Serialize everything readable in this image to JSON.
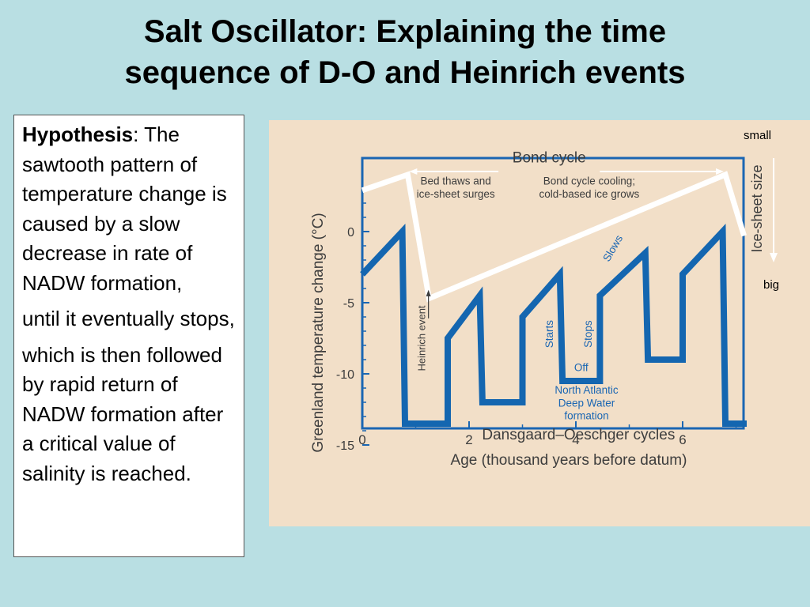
{
  "slide": {
    "title_line1": "Salt Oscillator: Explaining the time",
    "title_line2": "sequence of D-O and Heinrich events"
  },
  "hypothesis": {
    "heading": "Hypothesis",
    "sep": ": ",
    "p1": "The sawtooth pattern of temperature change is caused by a slow decrease in rate of NADW formation,",
    "p2": "until it eventually stops,",
    "p3": "which is then followed by rapid return of NADW formation after a critical value of salinity is reached."
  },
  "labels": {
    "small": "small",
    "big": "big"
  },
  "colors": {
    "panel": "#f2dfc8",
    "axis": "#1a66b3",
    "do_line": "#1466b0",
    "bond_line": "#ffffff",
    "text": "#3d3d3d"
  },
  "chart_data": {
    "type": "line",
    "xlabel": "Age (thousand years before datum)",
    "ylabel": "Greenland temperature change (°C)",
    "y2label": "Ice-sheet size",
    "xlim": [
      0,
      7.2
    ],
    "ylim": [
      -15,
      3.5
    ],
    "xticks": [
      0,
      2,
      4,
      6
    ],
    "yticks": [
      0,
      -5,
      -10,
      -15
    ],
    "series": [
      {
        "name": "Dansgaard–Oeschger cycles",
        "x": [
          0,
          0.75,
          0.8,
          1.6,
          1.6,
          2.2,
          2.25,
          3.0,
          3.0,
          3.7,
          3.75,
          4.45,
          4.45,
          5.3,
          5.35,
          6.0,
          6.0,
          6.75,
          6.8,
          7.2
        ],
        "y": [
          -3,
          0,
          -13.5,
          -13.5,
          -7.5,
          -4.5,
          -12,
          -12,
          -6,
          -3,
          -10.5,
          -10.5,
          -4.5,
          -1.5,
          -9,
          -9,
          -3,
          0,
          -13.5,
          -13.5
        ]
      },
      {
        "name": "Bond cycle",
        "x": [
          0,
          0.85,
          1.25,
          6.8,
          7.15
        ],
        "y": [
          2.9,
          4.0,
          -4.7,
          4.0,
          -0.3
        ]
      }
    ],
    "annotations": [
      {
        "text": "Bond cycle",
        "x": 3.5,
        "y": 4.85
      },
      {
        "text": "Bed thaws and",
        "x": 1.75,
        "y": 3.3
      },
      {
        "text": "ice-sheet surges",
        "x": 1.75,
        "y": 2.4
      },
      {
        "text": "Bond cycle cooling;",
        "x": 4.25,
        "y": 3.3
      },
      {
        "text": "cold-based ice grows",
        "x": 4.25,
        "y": 2.4
      },
      {
        "text": "Heinrich event",
        "x": 1.18,
        "y": -7.5,
        "rotate": -90
      },
      {
        "text": "Starts",
        "x": 3.57,
        "y": -7.2,
        "rotate": -90
      },
      {
        "text": "Stops",
        "x": 4.3,
        "y": -7.2,
        "rotate": -90
      },
      {
        "text": "Slows",
        "x": 4.75,
        "y": -1.3,
        "rotate": -60
      },
      {
        "text": "Off",
        "x": 4.1,
        "y": -9.8
      },
      {
        "text": "North Atlantic",
        "x": 4.2,
        "y": -11.4
      },
      {
        "text": "Deep Water",
        "x": 4.2,
        "y": -12.3
      },
      {
        "text": "formation",
        "x": 4.2,
        "y": -13.2
      },
      {
        "text": "Dansgaard–Oeschger cycles",
        "x": 4.05,
        "y": -14.6
      }
    ],
    "grid": false
  }
}
